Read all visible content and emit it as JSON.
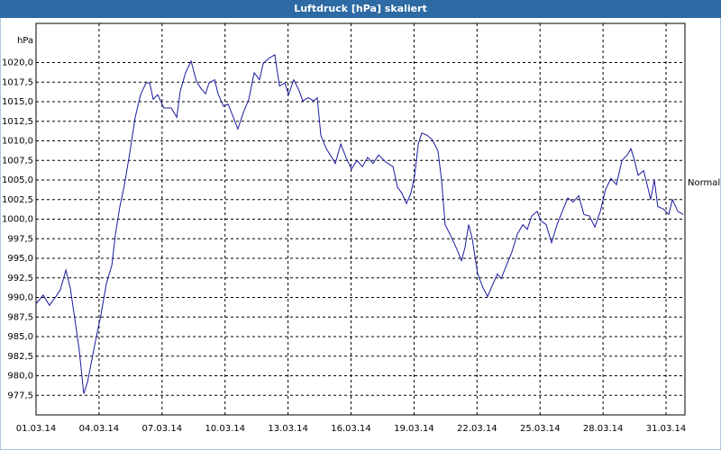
{
  "chart_data": {
    "type": "line",
    "title": "Luftdruck [hPa] skaliert",
    "y_unit": "hPa",
    "annotation": "Normal",
    "x": [
      1.0,
      1.34,
      1.64,
      1.94,
      2.16,
      2.42,
      2.63,
      2.85,
      3.06,
      3.27,
      3.45,
      3.62,
      3.83,
      4.09,
      4.35,
      4.61,
      4.78,
      4.99,
      5.21,
      5.46,
      5.72,
      5.98,
      6.24,
      6.41,
      6.58,
      6.79,
      7.09,
      7.44,
      7.7,
      7.87,
      8.12,
      8.38,
      8.64,
      8.85,
      9.07,
      9.24,
      9.5,
      9.67,
      9.93,
      10.14,
      10.4,
      10.61,
      10.87,
      11.13,
      11.39,
      11.64,
      11.82,
      12.07,
      12.37,
      12.59,
      12.85,
      13.02,
      13.27,
      13.53,
      13.7,
      13.96,
      14.22,
      14.39,
      14.56,
      14.82,
      15.08,
      15.25,
      15.51,
      15.76,
      16.02,
      16.28,
      16.54,
      16.79,
      17.05,
      17.31,
      17.65,
      18.0,
      18.21,
      18.42,
      18.64,
      18.85,
      19.03,
      19.2,
      19.37,
      19.63,
      19.88,
      20.14,
      20.31,
      20.48,
      20.74,
      21.0,
      21.26,
      21.43,
      21.6,
      21.77,
      22.03,
      22.29,
      22.5,
      22.72,
      22.97,
      23.15,
      23.4,
      23.66,
      23.92,
      24.18,
      24.39,
      24.61,
      24.86,
      25.03,
      25.29,
      25.55,
      25.81,
      26.06,
      26.32,
      26.58,
      26.84,
      27.09,
      27.35,
      27.61,
      27.87,
      28.12,
      28.38,
      28.64,
      28.9,
      29.15,
      29.33,
      29.5,
      29.67,
      29.93,
      30.1,
      30.27,
      30.44,
      30.61,
      30.87,
      31.13,
      31.3,
      31.56,
      31.82
    ],
    "series": [
      {
        "name": "Luftdruck",
        "color": "#1a1aa0",
        "values": [
          989.2,
          990.3,
          989.0,
          990.1,
          991.0,
          993.5,
          991.2,
          987.2,
          983.2,
          977.7,
          979.2,
          981.5,
          984.4,
          987.8,
          991.8,
          994.1,
          998.1,
          1001.6,
          1004.4,
          1008.4,
          1013.0,
          1015.9,
          1017.4,
          1017.4,
          1015.3,
          1015.9,
          1014.2,
          1014.2,
          1013.0,
          1016.4,
          1018.7,
          1020.2,
          1017.6,
          1016.7,
          1016.0,
          1017.4,
          1017.8,
          1016.0,
          1014.4,
          1014.7,
          1013.0,
          1011.5,
          1013.6,
          1015.3,
          1018.7,
          1017.8,
          1019.9,
          1020.5,
          1021.0,
          1017.0,
          1017.4,
          1015.9,
          1017.8,
          1016.4,
          1015.1,
          1015.5,
          1015.1,
          1015.5,
          1010.7,
          1009.0,
          1007.9,
          1007.1,
          1009.6,
          1007.9,
          1006.4,
          1007.5,
          1006.7,
          1007.9,
          1007.1,
          1008.2,
          1007.3,
          1006.7,
          1004.1,
          1003.3,
          1002.0,
          1003.3,
          1005.6,
          1009.6,
          1011.0,
          1010.7,
          1010.1,
          1008.7,
          1005.0,
          999.3,
          997.9,
          996.4,
          994.7,
          996.4,
          999.3,
          997.5,
          993.0,
          991.2,
          990.1,
          991.5,
          993.0,
          992.4,
          994.1,
          995.8,
          998.1,
          999.3,
          998.7,
          1000.4,
          1001.0,
          999.8,
          999.3,
          997.0,
          999.3,
          1001.0,
          1002.7,
          1002.2,
          1003.0,
          1000.6,
          1000.4,
          999.0,
          1001.0,
          1003.8,
          1005.2,
          1004.4,
          1007.5,
          1008.2,
          1009.0,
          1007.5,
          1005.6,
          1006.2,
          1004.4,
          1002.5,
          1005.0,
          1001.6,
          1001.3,
          1000.6,
          1002.5,
          1001.0,
          1000.6
        ]
      }
    ],
    "xlim": [
      1,
      31.9
    ],
    "xticks": [
      {
        "value": 1,
        "label": "01.03.14"
      },
      {
        "value": 4,
        "label": "04.03.14"
      },
      {
        "value": 7,
        "label": "07.03.14"
      },
      {
        "value": 10,
        "label": "10.03.14"
      },
      {
        "value": 13,
        "label": "13.03.14"
      },
      {
        "value": 16,
        "label": "16.03.14"
      },
      {
        "value": 19,
        "label": "19.03.14"
      },
      {
        "value": 22,
        "label": "22.03.14"
      },
      {
        "value": 25,
        "label": "25.03.14"
      },
      {
        "value": 28,
        "label": "28.03.14"
      },
      {
        "value": 31,
        "label": "31.03.14"
      }
    ],
    "ylim": [
      975,
      1025
    ],
    "yticks": [
      {
        "value": 977.5,
        "label": "977,5"
      },
      {
        "value": 980,
        "label": "980,0"
      },
      {
        "value": 982.5,
        "label": "982,5"
      },
      {
        "value": 985,
        "label": "985,0"
      },
      {
        "value": 987.5,
        "label": "987,5"
      },
      {
        "value": 990,
        "label": "990,0"
      },
      {
        "value": 992.5,
        "label": "992,5"
      },
      {
        "value": 995,
        "label": "995,0"
      },
      {
        "value": 997.5,
        "label": "997,5"
      },
      {
        "value": 1000,
        "label": "1000,0"
      },
      {
        "value": 1002.5,
        "label": "1002,5"
      },
      {
        "value": 1005,
        "label": "1005,0"
      },
      {
        "value": 1007.5,
        "label": "1007,5"
      },
      {
        "value": 1010,
        "label": "1010,0"
      },
      {
        "value": 1012.5,
        "label": "1012,5"
      },
      {
        "value": 1015,
        "label": "1015,0"
      },
      {
        "value": 1017.5,
        "label": "1017,5"
      },
      {
        "value": 1020,
        "label": "1020,0"
      }
    ],
    "grid": true
  }
}
